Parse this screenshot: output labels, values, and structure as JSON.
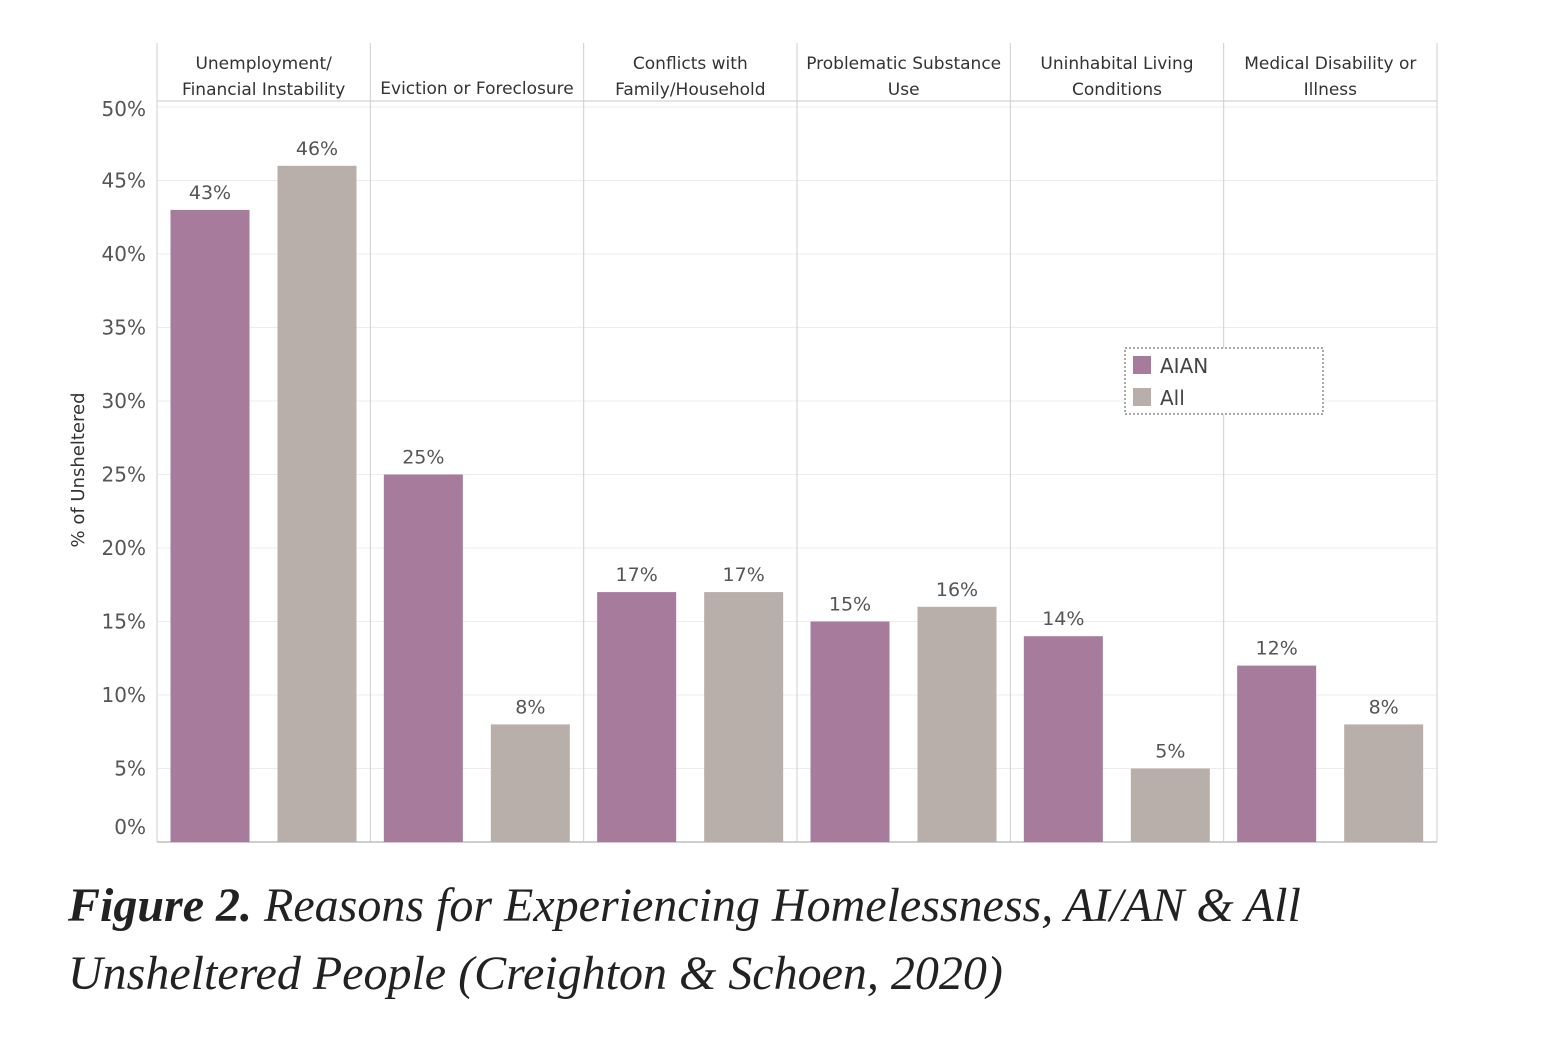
{
  "chart_data": {
    "type": "bar",
    "categories": [
      [
        "Unemployment/",
        "Financial Instability"
      ],
      [
        "Eviction or Foreclosure"
      ],
      [
        "Conflicts with",
        "Family/Household"
      ],
      [
        "Problematic Substance",
        "Use"
      ],
      [
        "Uninhabital Living",
        "Conditions"
      ],
      [
        "Medical Disability or",
        "Illness"
      ]
    ],
    "series": [
      {
        "name": "AIAN",
        "color": "#a67b9c",
        "values": [
          43,
          25,
          17,
          15,
          14,
          12
        ],
        "labels": [
          "43%",
          "25%",
          "17%",
          "15%",
          "14%",
          "12%"
        ]
      },
      {
        "name": "All",
        "color": "#b8afab",
        "values": [
          46,
          8,
          17,
          16,
          5,
          8
        ],
        "labels": [
          "46%",
          "8%",
          "17%",
          "16%",
          "5%",
          "8%"
        ]
      }
    ],
    "ylabel": "% of Unsheltered",
    "ylim": [
      0,
      50
    ],
    "yticks": [
      0,
      5,
      10,
      15,
      20,
      25,
      30,
      35,
      40,
      45,
      50
    ],
    "ytick_labels": [
      "0%",
      "5%",
      "10%",
      "15%",
      "20%",
      "25%",
      "30%",
      "35%",
      "40%",
      "45%",
      "50%"
    ],
    "legend_position": "right-middle",
    "grid": true
  },
  "caption": {
    "figure_number": "Figure 2.",
    "text": " Reasons for Experiencing Homelessness, AI/AN & All Unsheltered People (Creighton & Schoen, 2020)"
  }
}
